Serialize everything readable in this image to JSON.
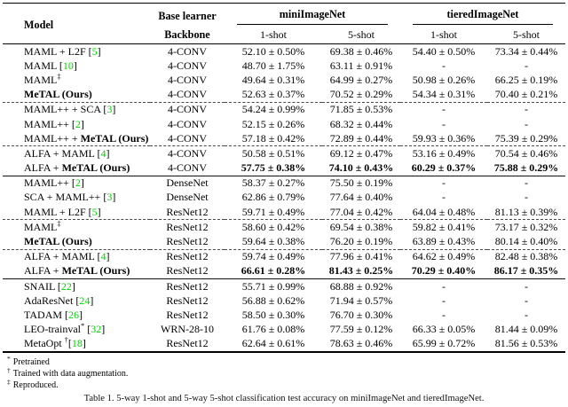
{
  "colors": {
    "citation_green": "#00d400"
  },
  "cite_format": {
    "open": "[",
    "close": "]"
  },
  "header": {
    "model": "Model",
    "base_learner": "Base learner",
    "backbone": "Backbone",
    "groups": [
      {
        "label": "miniImageNet"
      },
      {
        "label": "tieredImageNet"
      }
    ],
    "subcols": [
      "1-shot",
      "5-shot",
      "1-shot",
      "5-shot"
    ]
  },
  "rows": [
    {
      "model": [
        {
          "t": "MAML + L2F "
        }
      ],
      "cite": "5",
      "backbone": "4-CONV",
      "cells": [
        "52.10 ± 0.50%",
        "69.38 ± 0.46%",
        "54.40 ± 0.50%",
        "73.34 ± 0.44%"
      ]
    },
    {
      "model": [
        {
          "t": "MAML "
        }
      ],
      "cite": "10",
      "backbone": "4-CONV",
      "cells": [
        "48.70 ± 1.75%",
        "63.11 ± 0.91%",
        "-",
        "-"
      ]
    },
    {
      "model": [
        {
          "t": "MAML"
        },
        {
          "t": "‡",
          "sup": true
        }
      ],
      "backbone": "4-CONV",
      "cells": [
        "49.64 ± 0.31%",
        "64.99 ± 0.27%",
        "50.98 ± 0.26%",
        "66.25 ± 0.19%"
      ]
    },
    {
      "model": [
        {
          "t": "MeTAL (Ours)",
          "b": true
        }
      ],
      "backbone": "4-CONV",
      "cells": [
        "52.63 ± 0.37%",
        "70.52 ± 0.29%",
        "54.34 ± 0.31%",
        "70.40 ± 0.21%"
      ],
      "sep": "dashed"
    },
    {
      "model": [
        {
          "t": "MAML++ + SCA "
        }
      ],
      "cite": "3",
      "backbone": "4-CONV",
      "cells": [
        "54.24 ± 0.99%",
        "71.85 ± 0.53%",
        "-",
        "-"
      ]
    },
    {
      "model": [
        {
          "t": "MAML++ "
        }
      ],
      "cite": "2",
      "backbone": "4-CONV",
      "cells": [
        "52.15 ± 0.26%",
        "68.32 ± 0.44%",
        "-",
        "-"
      ]
    },
    {
      "model": [
        {
          "t": "MAML++ + "
        },
        {
          "t": "MeTAL (Ours)",
          "b": true
        }
      ],
      "backbone": "4-CONV",
      "cells": [
        "57.18 ± 0.42%",
        "72.89 ± 0.44%",
        "59.93 ± 0.36%",
        "75.39 ± 0.29%"
      ],
      "sep": "dashed"
    },
    {
      "model": [
        {
          "t": "ALFA + MAML "
        }
      ],
      "cite": "4",
      "backbone": "4-CONV",
      "cells": [
        "50.58 ± 0.51%",
        "69.12 ± 0.47%",
        "53.16 ± 0.49%",
        "70.54 ± 0.46%"
      ]
    },
    {
      "model": [
        {
          "t": "ALFA + "
        },
        {
          "t": "MeTAL (Ours)",
          "b": true
        }
      ],
      "backbone": "4-CONV",
      "cells": [
        "57.75 ± 0.38%",
        "74.10 ± 0.43%",
        "60.29 ± 0.37%",
        "75.88 ± 0.29%"
      ],
      "vb": true,
      "sep": "solid"
    },
    {
      "model": [
        {
          "t": "MAML++ "
        }
      ],
      "cite": "2",
      "backbone": "DenseNet",
      "cells": [
        "58.37 ± 0.27%",
        "75.50 ± 0.19%",
        "-",
        "-"
      ]
    },
    {
      "model": [
        {
          "t": "SCA + MAML++ "
        }
      ],
      "cite": "3",
      "backbone": "DenseNet",
      "cells": [
        "62.86 ± 0.79%",
        "77.64 ± 0.40%",
        "-",
        "-"
      ]
    },
    {
      "model": [
        {
          "t": "MAML + L2F "
        }
      ],
      "cite": "5",
      "backbone": "ResNet12",
      "cells": [
        "59.71 ± 0.49%",
        "77.04 ± 0.42%",
        "64.04 ± 0.48%",
        "81.13 ± 0.39%"
      ],
      "sep": "dashed"
    },
    {
      "model": [
        {
          "t": "MAML"
        },
        {
          "t": "‡",
          "sup": true
        }
      ],
      "backbone": "ResNet12",
      "cells": [
        "58.60 ± 0.42%",
        "69.54 ± 0.38%",
        "59.82 ± 0.41%",
        "73.17 ± 0.32%"
      ]
    },
    {
      "model": [
        {
          "t": "MeTAL (Ours)",
          "b": true
        }
      ],
      "backbone": "ResNet12",
      "cells": [
        "59.64 ± 0.38%",
        "76.20 ± 0.19%",
        "63.89 ± 0.43%",
        "80.14 ± 0.40%"
      ],
      "sep": "dashed"
    },
    {
      "model": [
        {
          "t": "ALFA + MAML "
        }
      ],
      "cite": "4",
      "backbone": "ResNet12",
      "cells": [
        "59.74 ± 0.49%",
        "77.96 ± 0.41%",
        "64.62 ± 0.49%",
        "82.48 ± 0.38%"
      ]
    },
    {
      "model": [
        {
          "t": "ALFA + "
        },
        {
          "t": "MeTAL (Ours)",
          "b": true
        }
      ],
      "backbone": "ResNet12",
      "cells": [
        "66.61 ± 0.28%",
        "81.43 ± 0.25%",
        "70.29 ± 0.40%",
        "86.17 ± 0.35%"
      ],
      "vb": true,
      "sep": "solid"
    },
    {
      "model": [
        {
          "t": "SNAIL "
        }
      ],
      "cite": "22",
      "backbone": "ResNet12",
      "cells": [
        "55.71 ± 0.99%",
        "68.88 ± 0.92%",
        "-",
        "-"
      ]
    },
    {
      "model": [
        {
          "t": "AdaResNet "
        }
      ],
      "cite": "24",
      "backbone": "ResNet12",
      "cells": [
        "56.88 ± 0.62%",
        "71.94 ± 0.57%",
        "-",
        "-"
      ]
    },
    {
      "model": [
        {
          "t": "TADAM "
        }
      ],
      "cite": "26",
      "backbone": "ResNet12",
      "cells": [
        "58.50 ± 0.30%",
        "76.70 ± 0.30%",
        "-",
        "-"
      ]
    },
    {
      "model": [
        {
          "t": "LEO-trainval"
        },
        {
          "t": "*",
          "sup": true
        }
      ],
      "cite": "32",
      "cite_sp": true,
      "backbone": "WRN-28-10",
      "cells": [
        "61.76 ± 0.08%",
        "77.59 ± 0.12%",
        "66.33 ± 0.05%",
        "81.44 ± 0.09%"
      ]
    },
    {
      "model": [
        {
          "t": "MetaOpt "
        },
        {
          "t": "†",
          "sup": true
        }
      ],
      "cite": "18",
      "cite_sp": false,
      "backbone": "ResNet12",
      "cells": [
        "62.64 ± 0.61%",
        "78.63 ± 0.46%",
        "65.99 ± 0.72%",
        "81.56 ± 0.53%"
      ]
    }
  ],
  "footnotes": [
    {
      "mark": "*",
      "text": "Pretrained"
    },
    {
      "mark": "†",
      "text": "Trained with data augmentation."
    },
    {
      "mark": "‡",
      "text": "Reproduced."
    }
  ],
  "caption": "Table 1. 5-way 1-shot and 5-way 5-shot classification test accuracy on miniImageNet and tieredImageNet."
}
